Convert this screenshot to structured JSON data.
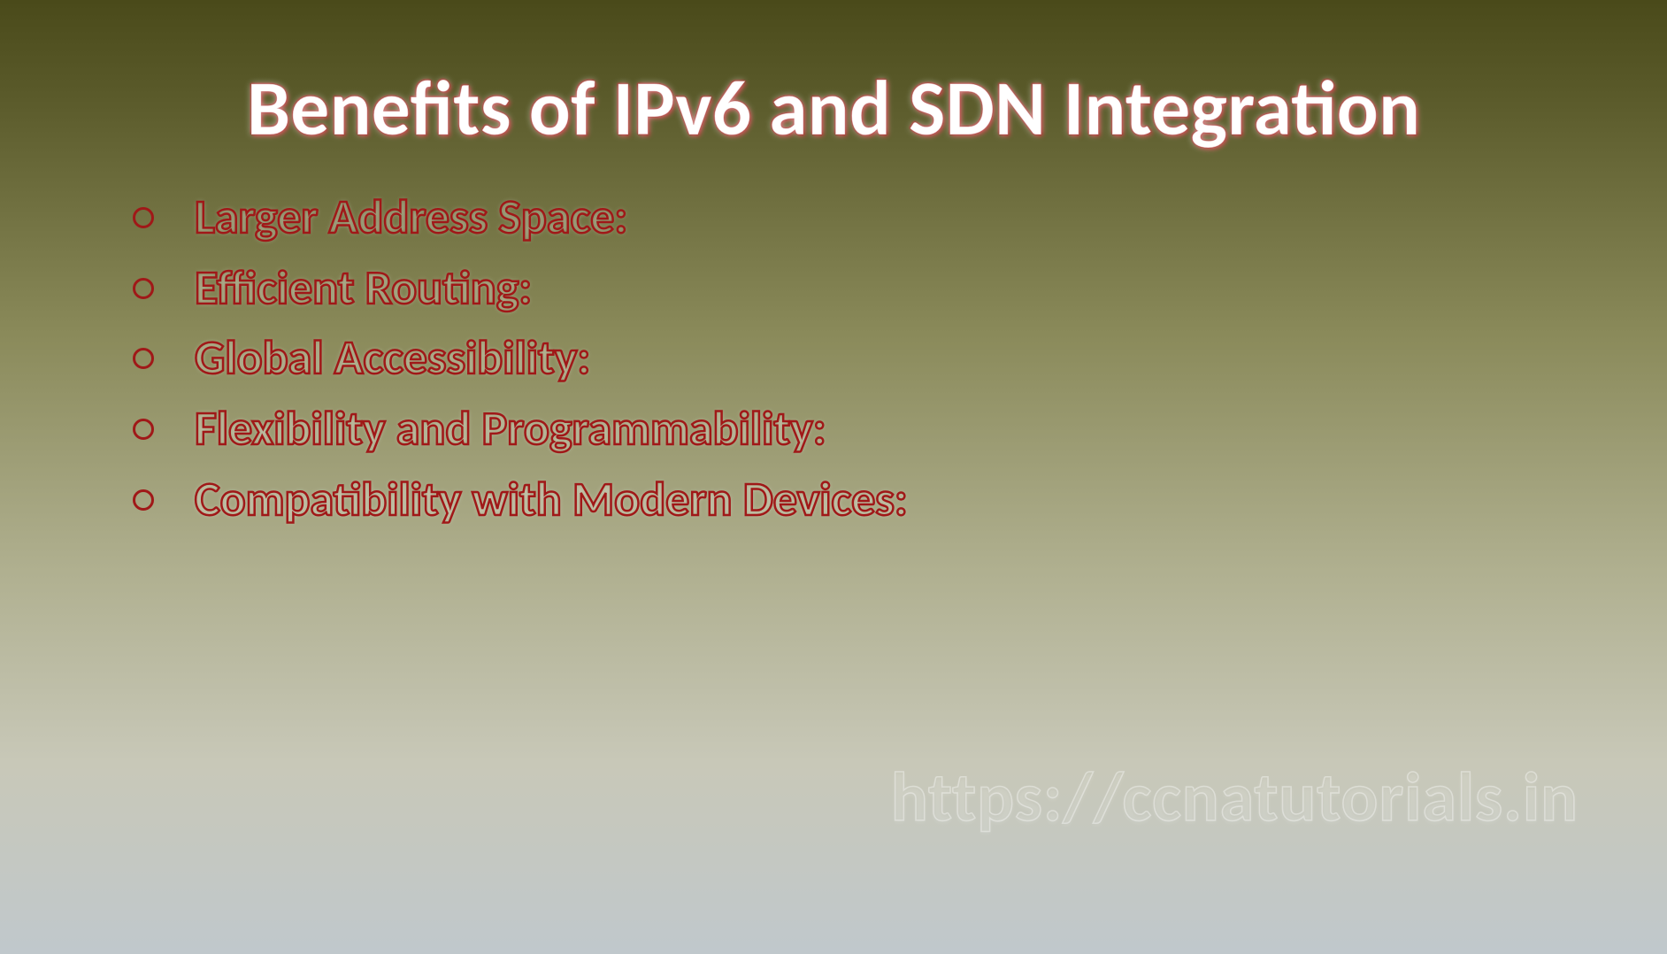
{
  "slide": {
    "title": "Benefits of IPv6 and SDN Integration",
    "bullets": [
      "Larger Address Space:",
      "Efficient Routing:",
      "Global Accessibility:",
      "Flexibility and Programmability:",
      "Compatibility with Modern Devices:"
    ],
    "watermark": "https://ccnatutorials.in",
    "style": {
      "background_gradient_top": "#4a4a1a",
      "background_gradient_bottom": "#c0c8cc",
      "title_color": "#ffffff",
      "title_glow_color": "#a01818",
      "title_fontsize": 88,
      "bullet_outline_color": "#a01818",
      "bullet_fontsize": 54,
      "bullet_marker": "hollow-circle",
      "watermark_outline_color": "rgba(255,255,255,0.45)",
      "watermark_fontsize": 78,
      "font_family": "Calibri"
    }
  }
}
